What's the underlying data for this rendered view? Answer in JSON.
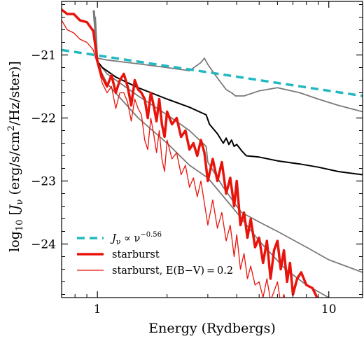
{
  "chart_data": {
    "type": "line",
    "xlabel": "Energy (Rydbergs)",
    "ylabel": "log₁₀ [Jν (erg/s/cm²/Hz/ster)]",
    "xscale": "log",
    "xlim": [
      0.7,
      14
    ],
    "ylim": [
      -24.85,
      -20.15
    ],
    "x_ticks": [
      1,
      10
    ],
    "x_tick_labels": [
      "1",
      "10"
    ],
    "y_ticks": [
      -21,
      -22,
      -23,
      -24
    ],
    "y_tick_labels": [
      "−21",
      "−22",
      "−23",
      "−24"
    ],
    "legend_position": "bottom-left",
    "colors": {
      "powerlaw": "#22b8c0",
      "starburst": "#e8140c",
      "black_model": "#000000",
      "gray_models": "#7a7a7a"
    },
    "series": [
      {
        "name": "Jν ∝ ν^−0.56",
        "legend": {
          "main": "J",
          "sub": "ν",
          "mid": " ∝ ν",
          "sup": "−0.56"
        },
        "style": "dashed",
        "color": "#22b8c0",
        "width": 3.5,
        "x": [
          0.7,
          14
        ],
        "y": [
          -20.92,
          -21.65
        ]
      },
      {
        "name": "starburst",
        "legend": {
          "main": "starburst"
        },
        "style": "solid",
        "color": "#e8140c",
        "width": 3.5,
        "x": [
          0.7,
          0.74,
          0.79,
          0.84,
          0.9,
          0.96,
          1.0,
          1.05,
          1.1,
          1.15,
          1.2,
          1.25,
          1.3,
          1.35,
          1.4,
          1.45,
          1.5,
          1.55,
          1.6,
          1.65,
          1.7,
          1.75,
          1.8,
          1.85,
          1.9,
          1.95,
          2.0,
          2.1,
          2.2,
          2.3,
          2.4,
          2.5,
          2.6,
          2.7,
          2.8,
          2.9,
          3.0,
          3.15,
          3.3,
          3.45,
          3.6,
          3.75,
          3.9,
          4.0,
          4.15,
          4.3,
          4.45,
          4.6,
          4.8,
          5.0,
          5.2,
          5.4,
          5.6,
          5.8,
          6.0,
          6.2,
          6.4,
          6.6,
          6.8,
          7.0,
          7.3,
          7.6,
          8.0,
          8.5,
          8.9
        ],
        "y": [
          -20.28,
          -20.35,
          -20.35,
          -20.45,
          -20.48,
          -20.62,
          -21.1,
          -21.35,
          -21.5,
          -21.32,
          -21.6,
          -21.4,
          -21.3,
          -21.5,
          -21.8,
          -21.4,
          -21.55,
          -21.6,
          -21.7,
          -22.0,
          -21.6,
          -21.8,
          -22.05,
          -21.7,
          -22.1,
          -22.3,
          -21.9,
          -22.1,
          -22.0,
          -22.3,
          -22.2,
          -22.5,
          -22.4,
          -22.6,
          -22.35,
          -22.55,
          -23.0,
          -22.65,
          -23.0,
          -22.7,
          -23.2,
          -22.95,
          -23.4,
          -23.0,
          -23.7,
          -23.5,
          -23.9,
          -23.6,
          -24.05,
          -23.9,
          -24.3,
          -23.95,
          -24.55,
          -24.1,
          -23.95,
          -24.4,
          -24.1,
          -24.6,
          -24.3,
          -24.8,
          -24.55,
          -24.45,
          -24.65,
          -24.7,
          -24.85
        ]
      },
      {
        "name": "starburst, E(B−V) = 0.2",
        "legend": {
          "main": "starburst, E(B−V) = 0.2"
        },
        "style": "solid",
        "color": "#e8140c",
        "width": 1.3,
        "x": [
          0.7,
          0.74,
          0.79,
          0.84,
          0.9,
          0.96,
          1.0,
          1.05,
          1.1,
          1.15,
          1.2,
          1.25,
          1.3,
          1.35,
          1.4,
          1.45,
          1.5,
          1.55,
          1.6,
          1.65,
          1.7,
          1.75,
          1.8,
          1.85,
          1.9,
          1.95,
          2.0,
          2.1,
          2.2,
          2.3,
          2.4,
          2.5,
          2.6,
          2.7,
          2.8,
          2.9,
          3.0,
          3.15,
          3.3,
          3.45,
          3.6,
          3.75,
          3.9,
          4.0,
          4.15,
          4.3,
          4.45,
          4.6,
          4.8,
          5.0,
          5.2,
          5.4,
          5.6,
          5.8,
          6.0,
          6.2,
          6.4,
          6.6
        ],
        "y": [
          -20.45,
          -20.6,
          -20.65,
          -20.75,
          -20.8,
          -20.92,
          -21.15,
          -21.45,
          -21.6,
          -21.5,
          -21.85,
          -21.6,
          -21.6,
          -21.75,
          -22.05,
          -21.7,
          -21.85,
          -21.95,
          -22.35,
          -22.5,
          -22.0,
          -22.25,
          -22.55,
          -22.2,
          -22.65,
          -22.85,
          -22.35,
          -22.65,
          -22.55,
          -22.9,
          -22.75,
          -23.1,
          -22.95,
          -23.25,
          -23.0,
          -23.35,
          -23.7,
          -23.3,
          -23.75,
          -23.5,
          -23.95,
          -23.7,
          -24.2,
          -23.85,
          -24.4,
          -24.15,
          -24.55,
          -24.35,
          -24.65,
          -24.6,
          -24.85,
          -24.55,
          -24.9,
          -24.75,
          -24.6,
          -24.95,
          -24.8,
          -25.0
        ]
      },
      {
        "name": "",
        "style": "solid",
        "color": "#000000",
        "width": 2.0,
        "x": [
          0.96,
          1.0,
          1.05,
          1.2,
          1.5,
          2.0,
          2.5,
          2.95,
          3.05,
          3.3,
          3.5,
          3.6,
          3.7,
          3.8,
          3.9,
          4.0,
          4.2,
          4.4,
          5.0,
          6.0,
          7.5,
          9.0,
          11,
          14
        ],
        "y": [
          -20.6,
          -21.1,
          -21.2,
          -21.35,
          -21.52,
          -21.7,
          -21.83,
          -21.95,
          -22.1,
          -22.25,
          -22.4,
          -22.32,
          -22.42,
          -22.35,
          -22.45,
          -22.42,
          -22.52,
          -22.6,
          -22.62,
          -22.68,
          -22.73,
          -22.78,
          -22.85,
          -22.9
        ]
      },
      {
        "name": "",
        "style": "solid",
        "color": "#7a7a7a",
        "width": 1.8,
        "x": [
          0.98,
          1.0,
          1.1,
          1.5,
          2.0,
          2.5,
          2.8,
          2.9,
          3.0,
          3.2,
          3.6,
          3.8,
          3.95,
          4.3,
          5.0,
          6.0,
          7.5,
          9.0,
          11,
          14
        ],
        "y": [
          -20.4,
          -21.05,
          -21.08,
          -21.14,
          -21.2,
          -21.25,
          -21.12,
          -21.05,
          -21.15,
          -21.3,
          -21.55,
          -21.6,
          -21.65,
          -21.65,
          -21.57,
          -21.52,
          -21.6,
          -21.7,
          -21.8,
          -21.9
        ]
      },
      {
        "name": "",
        "style": "solid",
        "color": "#7a7a7a",
        "width": 1.8,
        "x": [
          0.96,
          1.0,
          1.1,
          1.5,
          2.0,
          2.5,
          2.95,
          3.0,
          3.5,
          4.0,
          4.2,
          5.0,
          6.0,
          8.0,
          10,
          14
        ],
        "y": [
          -20.3,
          -21.1,
          -21.3,
          -21.65,
          -21.95,
          -22.2,
          -22.45,
          -22.7,
          -23.1,
          -23.4,
          -23.5,
          -23.65,
          -23.8,
          -24.05,
          -24.25,
          -24.45
        ]
      },
      {
        "name": "",
        "style": "solid",
        "color": "#7a7a7a",
        "width": 1.8,
        "x": [
          0.97,
          1.0,
          1.1,
          1.5,
          2.0,
          2.5,
          3.0,
          4.0,
          5.0,
          6.5,
          8.0,
          10,
          11,
          12
        ],
        "y": [
          -20.3,
          -21.15,
          -21.45,
          -22.0,
          -22.4,
          -22.75,
          -22.95,
          -23.5,
          -23.95,
          -24.4,
          -24.65,
          -24.85,
          -24.9,
          -24.95
        ]
      }
    ]
  }
}
